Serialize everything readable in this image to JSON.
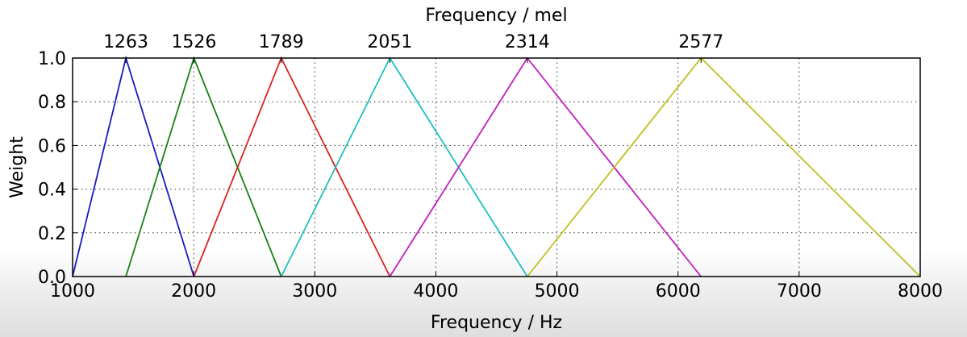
{
  "chart_data": {
    "type": "line",
    "title": "",
    "xlabel": "Frequency / Hz",
    "ylabel": "Weight",
    "secondary_xlabel": "Frequency / mel",
    "xlim": [
      1000,
      8000
    ],
    "ylim": [
      0.0,
      1.0
    ],
    "x_ticks": [
      1000,
      2000,
      3000,
      4000,
      5000,
      6000,
      7000,
      8000
    ],
    "x_tick_labels": [
      "1000",
      "2000",
      "3000",
      "4000",
      "5000",
      "6000",
      "7000",
      "8000"
    ],
    "y_ticks": [
      0.0,
      0.2,
      0.4,
      0.6,
      0.8,
      1.0
    ],
    "y_tick_labels": [
      "0.0",
      "0.2",
      "0.4",
      "0.6",
      "0.8",
      "1.0"
    ],
    "top_ticks_hz": [
      1440,
      2002,
      2723,
      3620,
      4755,
      6190
    ],
    "top_tick_labels": [
      "1263",
      "1526",
      "1789",
      "2051",
      "2314",
      "2577"
    ],
    "grid": true,
    "series": [
      {
        "color": "#1a1abf",
        "x": [
          1000,
          1440,
          2002
        ],
        "y": [
          0,
          1,
          0
        ]
      },
      {
        "color": "#188018",
        "x": [
          1440,
          2002,
          2723
        ],
        "y": [
          0,
          1,
          0
        ]
      },
      {
        "color": "#d62424",
        "x": [
          2002,
          2723,
          3620
        ],
        "y": [
          0,
          1,
          0
        ]
      },
      {
        "color": "#1fbfbf",
        "x": [
          2723,
          3620,
          4755
        ],
        "y": [
          0,
          1,
          0
        ]
      },
      {
        "color": "#bf1fbf",
        "x": [
          3620,
          4755,
          6190
        ],
        "y": [
          0,
          1,
          0
        ]
      },
      {
        "color": "#bfbf20",
        "x": [
          4755,
          6190,
          8000
        ],
        "y": [
          0,
          1,
          0
        ]
      }
    ]
  }
}
